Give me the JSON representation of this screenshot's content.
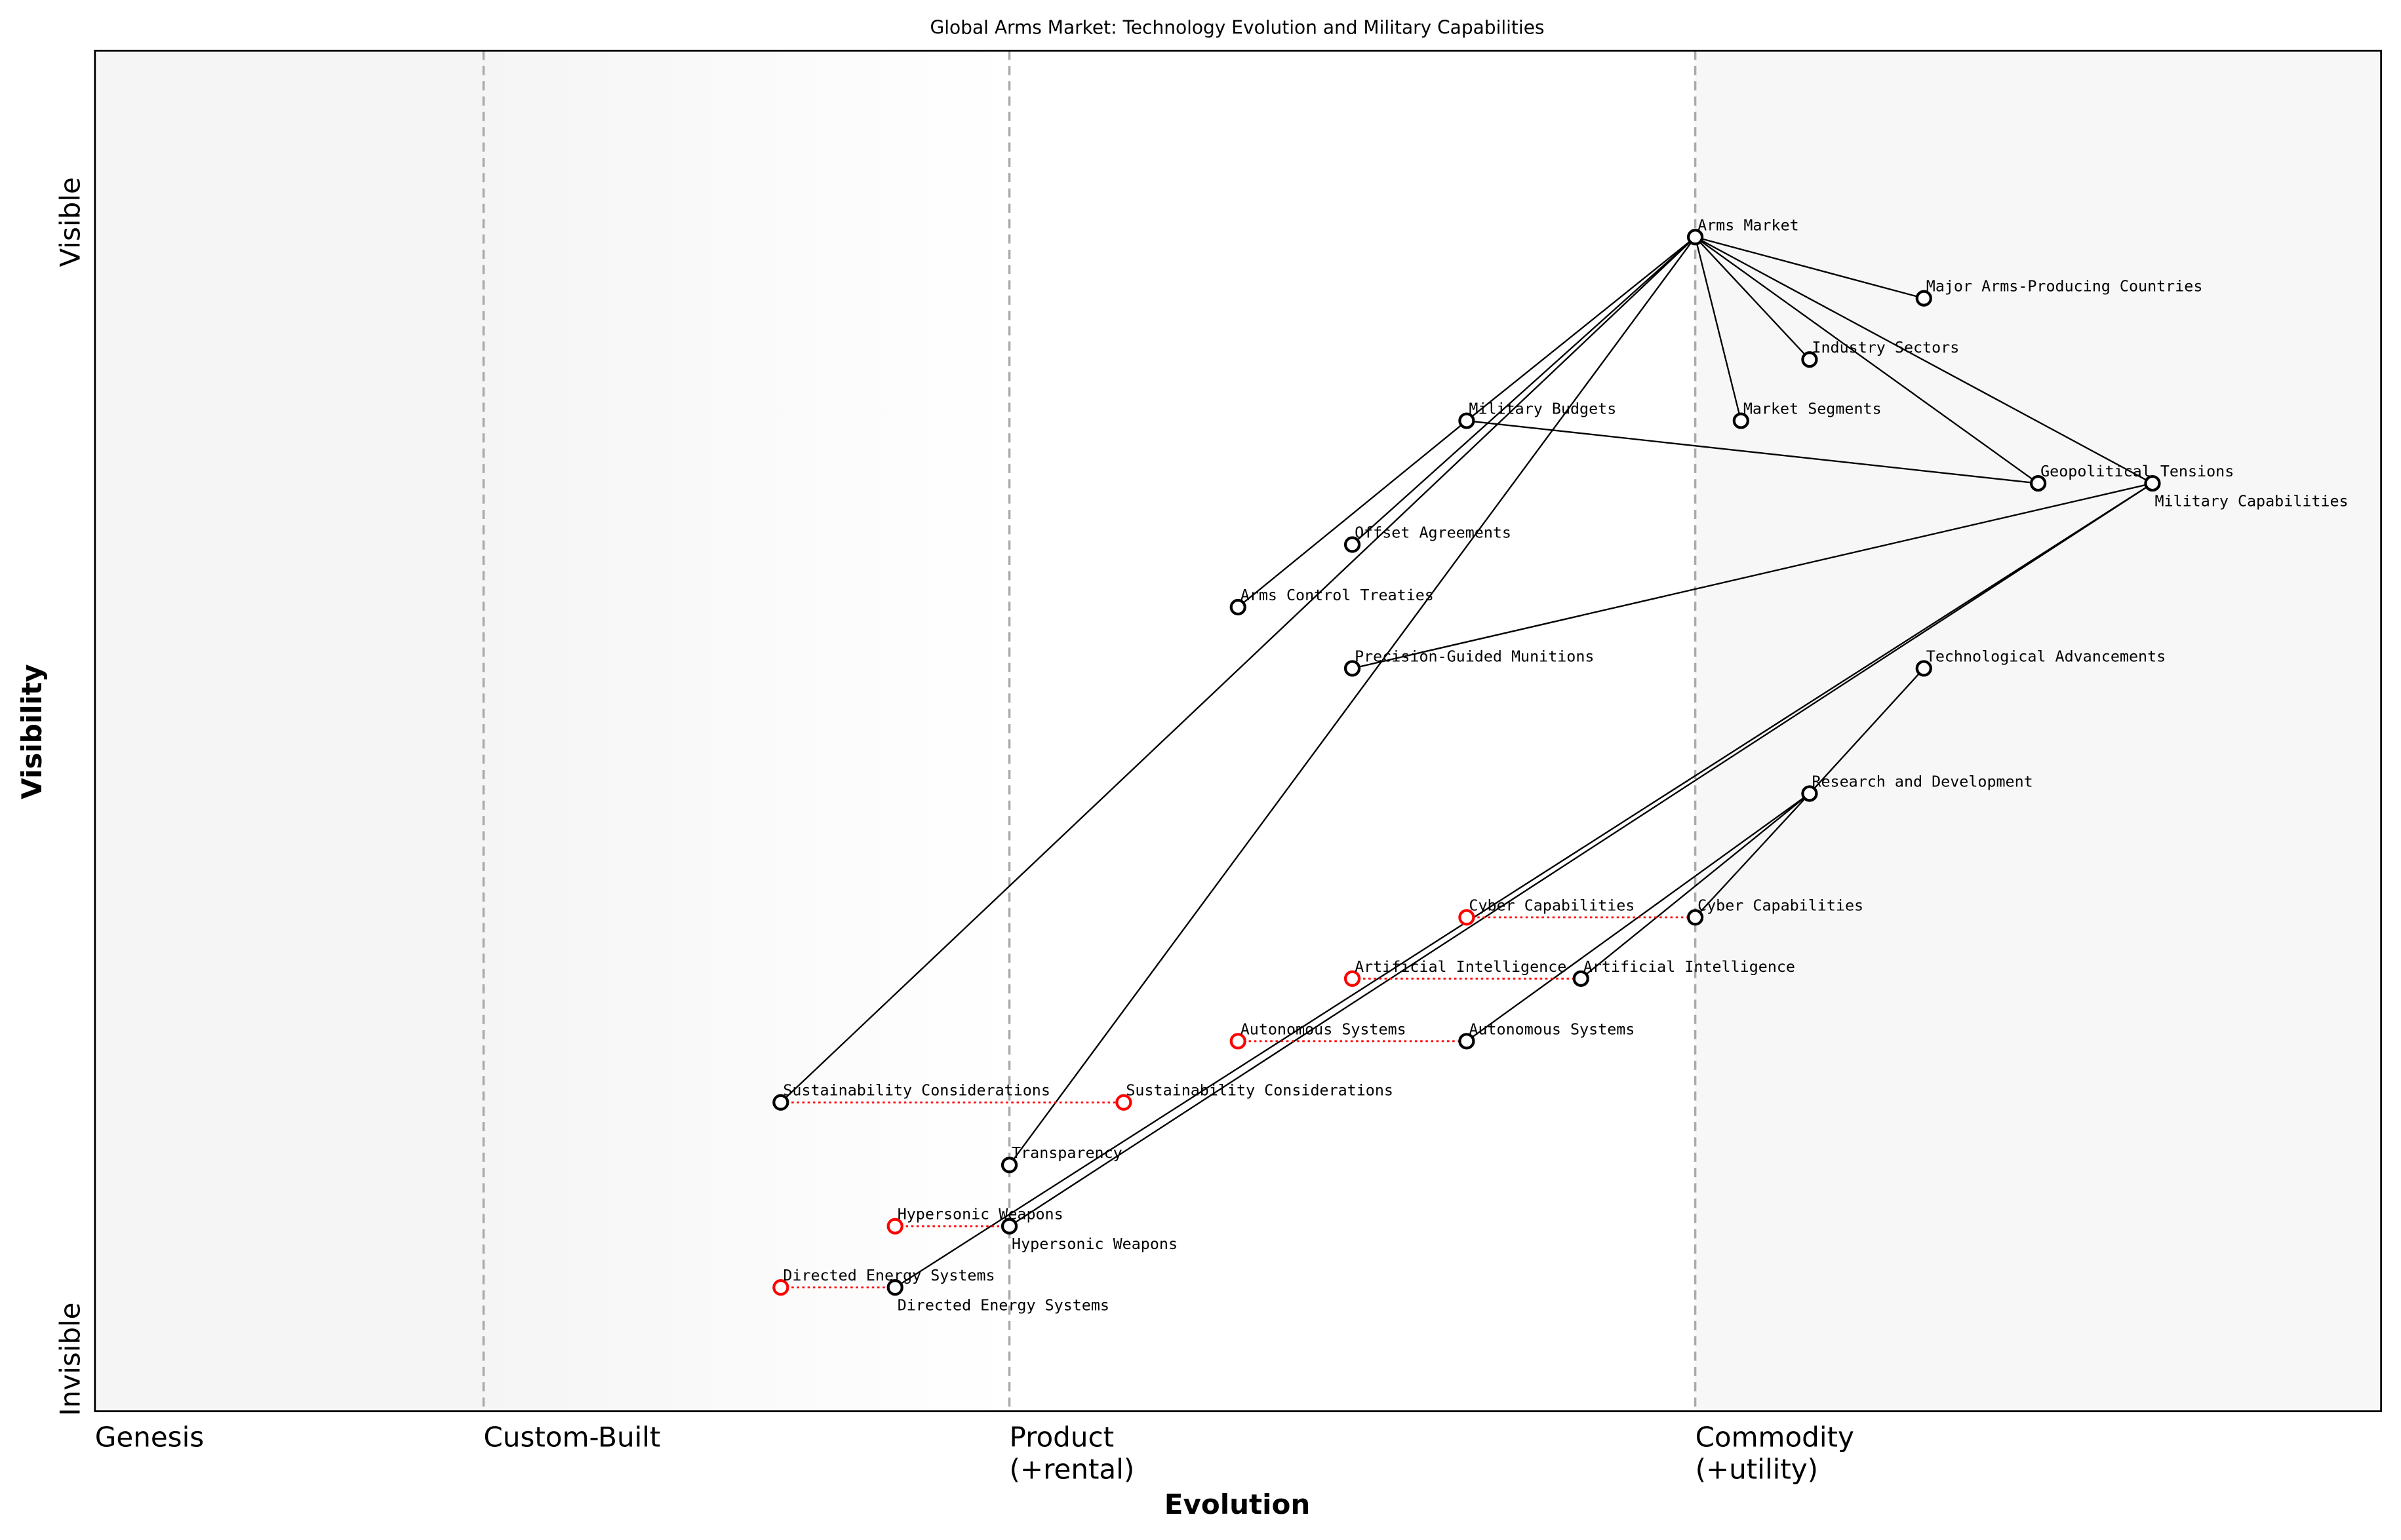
{
  "title": "Global Arms Market: Technology Evolution and Military Capabilities",
  "xlabel": "Evolution",
  "ylabel": "Visibility",
  "y_top_label": "Visible",
  "y_bottom_label": "Invisible",
  "stages": [
    {
      "label": "Genesis",
      "position": 0.0,
      "divider": false
    },
    {
      "label": "Custom-Built",
      "position": 0.17,
      "divider": true
    },
    {
      "label": "Product\n(+rental)",
      "position": 0.4,
      "divider": true
    },
    {
      "label": "Commodity\n(+utility)",
      "position": 0.7,
      "divider": true
    }
  ],
  "colors": {
    "node": "#000000",
    "evolved_node": "#ff0000",
    "evolution_link": "#ff0000",
    "divider": "#aaaaaa"
  },
  "components": [
    {
      "id": "arms",
      "name": "Arms Market",
      "evolution": 0.7,
      "visibility": 0.863,
      "color": "black"
    },
    {
      "id": "major",
      "name": "Major Arms-Producing Countries",
      "evolution": 0.8,
      "visibility": 0.818,
      "color": "black"
    },
    {
      "id": "industry",
      "name": "Industry Sectors",
      "evolution": 0.75,
      "visibility": 0.773,
      "color": "black"
    },
    {
      "id": "budgets",
      "name": "Military Budgets",
      "evolution": 0.6,
      "visibility": 0.728,
      "color": "black"
    },
    {
      "id": "segments",
      "name": "Market Segments",
      "evolution": 0.72,
      "visibility": 0.728,
      "color": "black"
    },
    {
      "id": "geo",
      "name": "Geopolitical Tensions",
      "evolution": 0.85,
      "visibility": 0.682,
      "color": "black"
    },
    {
      "id": "milcap",
      "name": "Military Capabilities",
      "evolution": 0.9,
      "visibility": 0.682,
      "color": "black"
    },
    {
      "id": "offset",
      "name": "Offset Agreements",
      "evolution": 0.55,
      "visibility": 0.637,
      "color": "black"
    },
    {
      "id": "treaties",
      "name": "Arms Control Treaties",
      "evolution": 0.5,
      "visibility": 0.591,
      "color": "black"
    },
    {
      "id": "pgm",
      "name": "Precision-Guided Munitions",
      "evolution": 0.55,
      "visibility": 0.546,
      "color": "black"
    },
    {
      "id": "tech",
      "name": "Technological Advancements",
      "evolution": 0.8,
      "visibility": 0.546,
      "color": "black"
    },
    {
      "id": "rnd",
      "name": "Research and Development",
      "evolution": 0.75,
      "visibility": 0.454,
      "color": "black"
    },
    {
      "id": "cyber_old",
      "name": "Cyber Capabilities",
      "evolution": 0.6,
      "visibility": 0.363,
      "color": "red"
    },
    {
      "id": "cyber",
      "name": "Cyber Capabilities",
      "evolution": 0.7,
      "visibility": 0.363,
      "color": "black"
    },
    {
      "id": "ai_old",
      "name": "Artificial Intelligence",
      "evolution": 0.55,
      "visibility": 0.318,
      "color": "red"
    },
    {
      "id": "ai",
      "name": "Artificial Intelligence",
      "evolution": 0.65,
      "visibility": 0.318,
      "color": "black"
    },
    {
      "id": "auto_old",
      "name": "Autonomous Systems",
      "evolution": 0.5,
      "visibility": 0.272,
      "color": "red"
    },
    {
      "id": "auto",
      "name": "Autonomous Systems",
      "evolution": 0.6,
      "visibility": 0.272,
      "color": "black"
    },
    {
      "id": "sust",
      "name": "Sustainability Considerations",
      "evolution": 0.3,
      "visibility": 0.227,
      "color": "black"
    },
    {
      "id": "sust_red",
      "name": "Sustainability Considerations",
      "evolution": 0.45,
      "visibility": 0.227,
      "color": "red"
    },
    {
      "id": "transp",
      "name": "Transparency",
      "evolution": 0.4,
      "visibility": 0.181,
      "color": "black"
    },
    {
      "id": "hyper_old",
      "name": "Hypersonic Weapons",
      "evolution": 0.35,
      "visibility": 0.136,
      "color": "red"
    },
    {
      "id": "hyper",
      "name": "Hypersonic Weapons",
      "evolution": 0.4,
      "visibility": 0.136,
      "color": "black"
    },
    {
      "id": "dew_old",
      "name": "Directed Energy Systems",
      "evolution": 0.3,
      "visibility": 0.091,
      "color": "red"
    },
    {
      "id": "dew",
      "name": "Directed Energy Systems",
      "evolution": 0.35,
      "visibility": 0.091,
      "color": "black"
    }
  ],
  "links": [
    [
      "arms",
      "major"
    ],
    [
      "arms",
      "industry"
    ],
    [
      "arms",
      "segments"
    ],
    [
      "arms",
      "geo"
    ],
    [
      "arms",
      "milcap"
    ],
    [
      "arms",
      "budgets"
    ],
    [
      "arms",
      "offset"
    ],
    [
      "arms",
      "sust"
    ],
    [
      "arms",
      "transp"
    ],
    [
      "budgets",
      "treaties"
    ],
    [
      "budgets",
      "geo"
    ],
    [
      "milcap",
      "pgm"
    ],
    [
      "milcap",
      "hyper"
    ],
    [
      "milcap",
      "dew"
    ],
    [
      "tech",
      "rnd"
    ],
    [
      "rnd",
      "cyber"
    ],
    [
      "rnd",
      "ai"
    ],
    [
      "rnd",
      "auto"
    ]
  ],
  "evolution_links": [
    [
      "cyber_old",
      "cyber"
    ],
    [
      "ai_old",
      "ai"
    ],
    [
      "auto_old",
      "auto"
    ],
    [
      "sust",
      "sust_red"
    ],
    [
      "hyper_old",
      "hyper"
    ],
    [
      "dew_old",
      "dew"
    ]
  ]
}
